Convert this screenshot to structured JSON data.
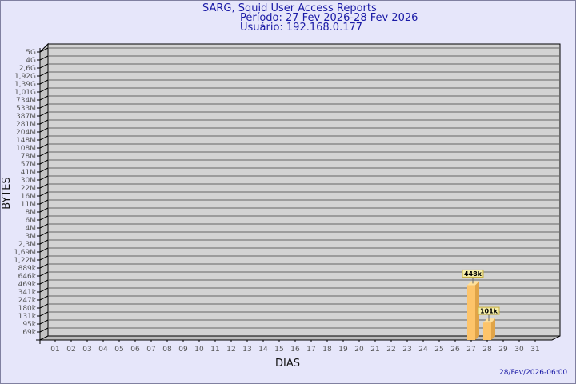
{
  "chart_data": {
    "type": "bar",
    "title": "SARG, Squid User Access Reports",
    "subtitle_period": "Período: 27 Fev 2026-28 Fev 2026",
    "subtitle_user": "Usuário: 192.168.0.177",
    "xlabel": "DIAS",
    "ylabel": "BYTES",
    "y_scale": "log",
    "grid": true,
    "categories": [
      "01",
      "02",
      "03",
      "04",
      "05",
      "06",
      "07",
      "08",
      "09",
      "10",
      "11",
      "12",
      "13",
      "14",
      "15",
      "16",
      "17",
      "18",
      "19",
      "20",
      "21",
      "22",
      "23",
      "24",
      "25",
      "26",
      "27",
      "28",
      "29",
      "30",
      "31"
    ],
    "yticks": [
      "5G",
      "4G",
      "2,6G",
      "1,92G",
      "1,39G",
      "1,01G",
      "734M",
      "533M",
      "387M",
      "281M",
      "204M",
      "148M",
      "108M",
      "78M",
      "57M",
      "41M",
      "30M",
      "22M",
      "16M",
      "11M",
      "8M",
      "6M",
      "4M",
      "3M",
      "2,3M",
      "1,69M",
      "1,22M",
      "889k",
      "646k",
      "469k",
      "341k",
      "247k",
      "180k",
      "131k",
      "95k",
      "69k"
    ],
    "bars": [
      {
        "category": "27",
        "value": 448000,
        "label": "448k"
      },
      {
        "category": "28",
        "value": 101000,
        "label": "101k"
      }
    ],
    "timestamp": "28/Fev/2026-06:00",
    "colors": {
      "bar_front": "#fdc46a",
      "bar_side": "#e0a448",
      "bar_top": "#ffe09a",
      "wall": "#d3d3d3",
      "text": "#1a1aa6",
      "label_bg": "#f5eeaa"
    }
  }
}
